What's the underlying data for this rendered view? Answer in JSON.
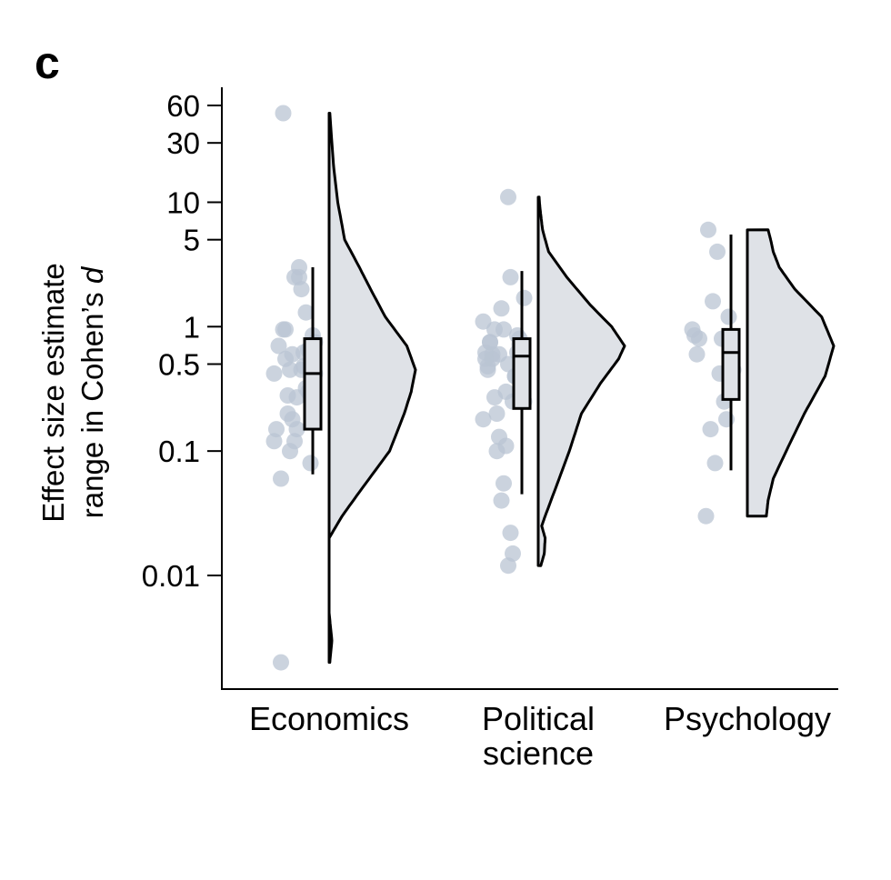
{
  "panel_label": "c",
  "chart_data": {
    "type": "raincloud",
    "ylabel_line1": "Effect size estimate",
    "ylabel_line2_prefix": "range in Cohen’s ",
    "ylabel_line2_italic": "d",
    "yscale": "log",
    "ylim": [
      0.0016,
      90
    ],
    "yticks": [
      {
        "value": 0.01,
        "label": "0.01"
      },
      {
        "value": 0.1,
        "label": "0.1"
      },
      {
        "value": 0.5,
        "label": "0.5"
      },
      {
        "value": 1,
        "label": "1"
      },
      {
        "value": 5,
        "label": "5"
      },
      {
        "value": 10,
        "label": "10"
      },
      {
        "value": 30,
        "label": "30"
      },
      {
        "value": 60,
        "label": "60"
      }
    ],
    "colors": {
      "points": "#b9c4d3",
      "violin_fill": "#dfe2e7",
      "line": "#000000"
    },
    "categories": [
      {
        "label_lines": [
          "Economics"
        ],
        "points": [
          0.12,
          0.75,
          0.5,
          0.28,
          0.3,
          1.3,
          0.62,
          0.45,
          2.5,
          0.27,
          0.12,
          0.6,
          0.1,
          0.28,
          0.55,
          0.95,
          0.06,
          0.7,
          0.15,
          0.42,
          0.42,
          0.85,
          0.08,
          0.65,
          0.32,
          0.48,
          2.0,
          3.0,
          0.15,
          2.5,
          0.18,
          0.45,
          0.2,
          0.95,
          52,
          0.002
        ],
        "box": {
          "whisker_low": 0.065,
          "q1": 0.15,
          "median": 0.42,
          "q3": 0.8,
          "whisker_high": 3.0
        },
        "violin": {
          "min": 0.002,
          "max": 52,
          "density": [
            [
              0.002,
              0.008
            ],
            [
              0.003,
              0.032
            ],
            [
              0.005,
              0.0
            ],
            [
              0.01,
              0.0
            ],
            [
              0.02,
              0.0
            ],
            [
              0.03,
              0.15
            ],
            [
              0.05,
              0.38
            ],
            [
              0.1,
              0.7
            ],
            [
              0.2,
              0.87
            ],
            [
              0.3,
              0.95
            ],
            [
              0.45,
              1.0
            ],
            [
              0.7,
              0.9
            ],
            [
              1.2,
              0.65
            ],
            [
              2,
              0.48
            ],
            [
              3,
              0.35
            ],
            [
              5,
              0.18
            ],
            [
              10,
              0.1
            ],
            [
              20,
              0.05
            ],
            [
              35,
              0.025
            ],
            [
              52,
              0.008
            ]
          ]
        }
      },
      {
        "label_lines": [
          "Political",
          "science"
        ],
        "points": [
          0.5,
          0.3,
          0.95,
          1.4,
          0.6,
          0.1,
          0.95,
          0.55,
          0.75,
          0.45,
          0.62,
          0.18,
          0.25,
          0.65,
          0.72,
          0.85,
          0.4,
          0.015,
          0.022,
          0.012,
          0.11,
          0.055,
          0.04,
          0.13,
          0.2,
          0.27,
          0.6,
          0.75,
          0.48,
          0.55,
          1.1,
          1.7,
          0.38,
          0.8,
          0.62,
          0.4,
          0.25,
          2.5,
          11
        ],
        "box": {
          "whisker_low": 0.045,
          "q1": 0.22,
          "median": 0.58,
          "q3": 0.8,
          "whisker_high": 2.8
        },
        "violin": {
          "min": 0.012,
          "max": 11,
          "density": [
            [
              0.012,
              0.03
            ],
            [
              0.015,
              0.07
            ],
            [
              0.02,
              0.08
            ],
            [
              0.025,
              0.04
            ],
            [
              0.03,
              0.08
            ],
            [
              0.05,
              0.2
            ],
            [
              0.1,
              0.36
            ],
            [
              0.2,
              0.5
            ],
            [
              0.35,
              0.72
            ],
            [
              0.55,
              0.93
            ],
            [
              0.7,
              1.0
            ],
            [
              1.0,
              0.85
            ],
            [
              1.5,
              0.6
            ],
            [
              2.5,
              0.33
            ],
            [
              4,
              0.12
            ],
            [
              6,
              0.05
            ],
            [
              9,
              0.02
            ],
            [
              11,
              0.01
            ]
          ]
        }
      },
      {
        "label_lines": [
          "Psychology"
        ],
        "points": [
          0.8,
          0.6,
          0.85,
          0.95,
          0.45,
          0.35,
          1.2,
          0.18,
          0.25,
          0.8,
          0.42,
          4.0,
          0.08,
          1.6,
          0.15,
          6.0,
          0.03
        ],
        "box": {
          "whisker_low": 0.07,
          "q1": 0.26,
          "median": 0.62,
          "q3": 0.95,
          "whisker_high": 5.5
        },
        "violin": {
          "min": 0.03,
          "max": 6,
          "density": [
            [
              0.03,
              0.22
            ],
            [
              0.04,
              0.24
            ],
            [
              0.06,
              0.3
            ],
            [
              0.1,
              0.45
            ],
            [
              0.2,
              0.66
            ],
            [
              0.4,
              0.9
            ],
            [
              0.7,
              1.0
            ],
            [
              1.2,
              0.86
            ],
            [
              2,
              0.55
            ],
            [
              3,
              0.37
            ],
            [
              4,
              0.3
            ],
            [
              5,
              0.27
            ],
            [
              6,
              0.24
            ]
          ]
        }
      }
    ]
  }
}
